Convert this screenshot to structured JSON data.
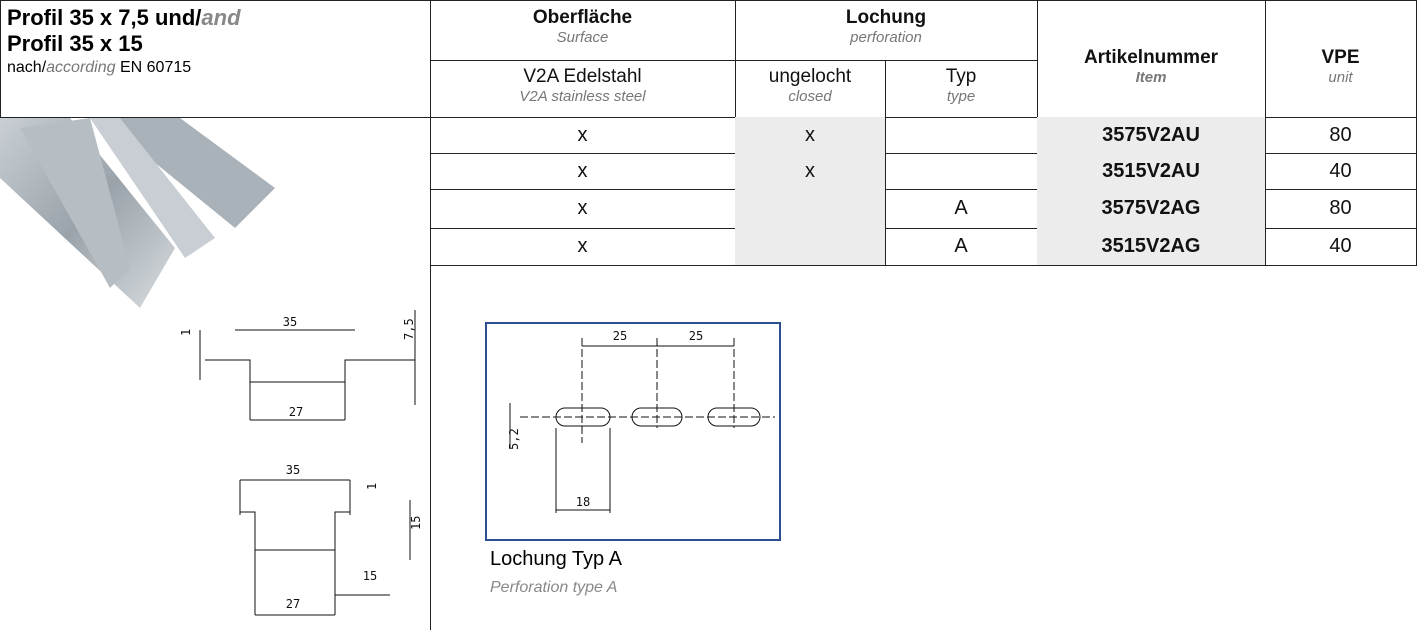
{
  "header": {
    "title_line1": "Profil 35 x 7,5 und/",
    "title_line1_en": "and",
    "title_line2": "Profil 35 x 15",
    "standard_prefix": "nach/",
    "standard_en": "according",
    "standard": "EN 60715"
  },
  "table": {
    "headers": {
      "surface": {
        "de": "Oberfläche",
        "en": "Surface"
      },
      "perforation": {
        "de": "Lochung",
        "en": "perforation"
      },
      "item": {
        "de": "Artikelnummer",
        "en": "Item"
      },
      "unit": {
        "de": "VPE",
        "en": "unit"
      },
      "material": {
        "de": "V2A Edelstahl",
        "en": "V2A stainless steel"
      },
      "closed": {
        "de": "ungelocht",
        "en": "closed"
      },
      "type": {
        "de": "Typ",
        "en": "type"
      }
    },
    "rows": [
      [
        "x",
        "x",
        null,
        "3575V2AU",
        80
      ],
      [
        "x",
        "x",
        null,
        "3515V2AU",
        40
      ],
      [
        "x",
        null,
        "A",
        "3575V2AG",
        80
      ],
      [
        "x",
        null,
        "A",
        "3515V2AG",
        40
      ]
    ]
  },
  "drawings": {
    "profile_a": {
      "width_top": "35",
      "thickness": "1",
      "height": "7,5",
      "width_bottom": "27"
    },
    "profile_b": {
      "width_top": "35",
      "thickness": "1",
      "height": "15",
      "flange": "15",
      "width_bottom": "27"
    },
    "perforation": {
      "pitch_1": "25",
      "pitch_2": "25",
      "hole_width": "5,2",
      "hole_length": "18",
      "caption": "Lochung Typ A",
      "caption_en": "Perforation type A"
    }
  }
}
